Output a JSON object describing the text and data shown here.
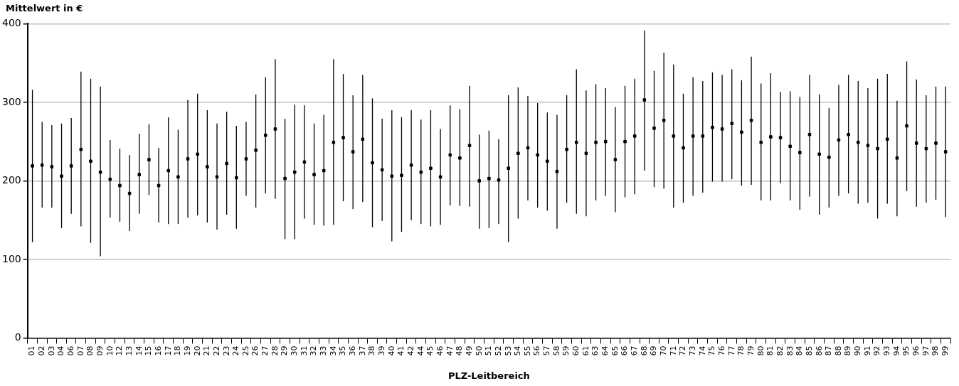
{
  "chart_data": {
    "type": "scatter",
    "ylabel": "Mittelwert in €",
    "xlabel": "PLZ-Leitbereich",
    "categories": [
      "01",
      "02",
      "03",
      "04",
      "06",
      "07",
      "08",
      "09",
      "10",
      "12",
      "13",
      "14",
      "15",
      "16",
      "17",
      "18",
      "19",
      "20",
      "21",
      "22",
      "23",
      "24",
      "25",
      "26",
      "27",
      "28",
      "29",
      "30",
      "31",
      "32",
      "33",
      "34",
      "35",
      "36",
      "37",
      "38",
      "39",
      "40",
      "41",
      "42",
      "44",
      "45",
      "46",
      "47",
      "48",
      "49",
      "50",
      "51",
      "52",
      "53",
      "54",
      "55",
      "56",
      "57",
      "58",
      "59",
      "60",
      "61",
      "63",
      "64",
      "65",
      "66",
      "67",
      "68",
      "69",
      "70",
      "71",
      "72",
      "73",
      "74",
      "75",
      "76",
      "77",
      "78",
      "79",
      "80",
      "81",
      "82",
      "83",
      "84",
      "85",
      "86",
      "87",
      "88",
      "89",
      "90",
      "91",
      "92",
      "93",
      "94",
      "95",
      "96",
      "97",
      "98",
      "99"
    ],
    "series": [
      {
        "color": "#000000",
        "values": [
          219,
          220,
          218,
          206,
          219,
          240,
          225,
          211,
          202,
          194,
          184,
          208,
          227,
          194,
          213,
          205,
          228,
          234,
          218,
          205,
          222,
          204,
          228,
          239,
          258,
          266,
          203,
          211,
          224,
          208,
          213,
          249,
          255,
          237,
          253,
          223,
          214,
          206,
          207,
          220,
          211,
          216,
          205,
          233,
          229,
          245,
          200,
          203,
          201,
          216,
          235,
          242,
          233,
          225,
          212,
          240,
          249,
          235,
          249,
          250,
          227,
          250,
          257,
          303,
          267,
          277,
          257,
          242,
          257,
          257,
          268,
          266,
          273,
          262,
          277,
          249,
          256,
          255,
          244,
          236,
          259,
          234,
          230,
          252,
          259,
          249,
          245,
          241,
          253,
          229,
          270,
          248,
          241,
          248,
          237
        ],
        "errors": [
          [
            122,
            316
          ],
          [
            166,
            275
          ],
          [
            166,
            271
          ],
          [
            140,
            273
          ],
          [
            158,
            280
          ],
          [
            142,
            339
          ],
          [
            121,
            330
          ],
          [
            104,
            320
          ],
          [
            153,
            252
          ],
          [
            148,
            241
          ],
          [
            136,
            233
          ],
          [
            158,
            260
          ],
          [
            182,
            272
          ],
          [
            147,
            242
          ],
          [
            145,
            281
          ],
          [
            145,
            265
          ],
          [
            153,
            303
          ],
          [
            156,
            311
          ],
          [
            147,
            290
          ],
          [
            138,
            273
          ],
          [
            157,
            288
          ],
          [
            139,
            270
          ],
          [
            181,
            275
          ],
          [
            166,
            310
          ],
          [
            184,
            332
          ],
          [
            177,
            355
          ],
          [
            126,
            279
          ],
          [
            126,
            297
          ],
          [
            152,
            296
          ],
          [
            144,
            273
          ],
          [
            143,
            284
          ],
          [
            144,
            355
          ],
          [
            174,
            336
          ],
          [
            164,
            309
          ],
          [
            173,
            335
          ],
          [
            141,
            305
          ],
          [
            149,
            279
          ],
          [
            123,
            290
          ],
          [
            135,
            281
          ],
          [
            150,
            290
          ],
          [
            145,
            278
          ],
          [
            142,
            290
          ],
          [
            144,
            266
          ],
          [
            169,
            296
          ],
          [
            168,
            291
          ],
          [
            167,
            321
          ],
          [
            139,
            259
          ],
          [
            140,
            264
          ],
          [
            145,
            253
          ],
          [
            122,
            309
          ],
          [
            152,
            319
          ],
          [
            175,
            308
          ],
          [
            166,
            299
          ],
          [
            162,
            287
          ],
          [
            139,
            284
          ],
          [
            172,
            309
          ],
          [
            158,
            342
          ],
          [
            155,
            315
          ],
          [
            175,
            323
          ],
          [
            181,
            318
          ],
          [
            160,
            294
          ],
          [
            179,
            321
          ],
          [
            183,
            330
          ],
          [
            213,
            391
          ],
          [
            192,
            340
          ],
          [
            190,
            363
          ],
          [
            166,
            348
          ],
          [
            172,
            311
          ],
          [
            181,
            332
          ],
          [
            185,
            327
          ],
          [
            199,
            338
          ],
          [
            199,
            335
          ],
          [
            202,
            342
          ],
          [
            194,
            328
          ],
          [
            195,
            358
          ],
          [
            175,
            324
          ],
          [
            175,
            337
          ],
          [
            197,
            313
          ],
          [
            175,
            314
          ],
          [
            163,
            307
          ],
          [
            180,
            335
          ],
          [
            157,
            310
          ],
          [
            166,
            293
          ],
          [
            181,
            322
          ],
          [
            184,
            335
          ],
          [
            171,
            327
          ],
          [
            172,
            318
          ],
          [
            152,
            330
          ],
          [
            171,
            336
          ],
          [
            155,
            302
          ],
          [
            187,
            352
          ],
          [
            167,
            329
          ],
          [
            172,
            309
          ],
          [
            176,
            320
          ],
          [
            154,
            320
          ]
        ]
      }
    ],
    "ylim": [
      0,
      400
    ],
    "yticks": [
      0,
      100,
      200,
      300,
      400
    ],
    "grid": "y",
    "legend": false,
    "marker": "square"
  }
}
